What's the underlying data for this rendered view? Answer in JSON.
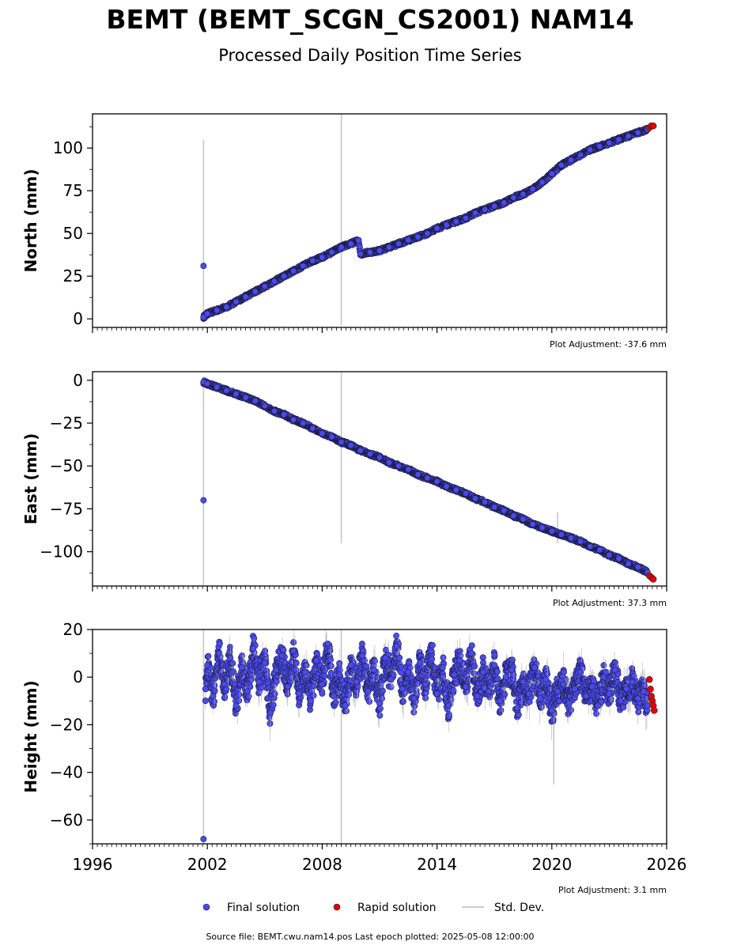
{
  "figure": {
    "title": "BEMT (BEMT_SCGN_CS2001) NAM14",
    "subtitle": "Processed Daily Position Time Series",
    "source_note": "Source file: BEMT.cwu.nam14.pos  Last epoch plotted: 2025-05-08 12:00:00"
  },
  "legend": {
    "items": [
      {
        "label": "Final solution",
        "color": "#4a4aee"
      },
      {
        "label": "Rapid solution",
        "color": "#e60000"
      },
      {
        "label": "Std. Dev.",
        "color": "#cccccc"
      }
    ]
  },
  "colors": {
    "final": "#4a4aee",
    "rapid": "#e60000",
    "stddev": "#c8c8c8",
    "edge": "#1a1a3a"
  },
  "x_axis": {
    "range": [
      1996,
      2026
    ],
    "ticks": [
      1996,
      2002,
      2008,
      2014,
      2020,
      2026
    ],
    "tick_labels": [
      "1996",
      "2002",
      "2008",
      "2014",
      "2020",
      "2026"
    ]
  },
  "chart_data": [
    {
      "type": "scatter",
      "ylabel": "North (mm)",
      "ylim": [
        -5,
        120
      ],
      "yticks": [
        0,
        25,
        50,
        75,
        100
      ],
      "ytick_labels": [
        "0",
        "25",
        "50",
        "75",
        "100"
      ],
      "adjustment_note": "Plot Adjustment: -37.6 mm",
      "final_solution": {
        "x": [
          2001.8,
          2001.8,
          2002.0,
          2002.5,
          2003.0,
          2003.5,
          2004.0,
          2004.5,
          2005.0,
          2005.5,
          2006.0,
          2006.5,
          2007.0,
          2007.5,
          2008.0,
          2008.5,
          2009.0,
          2009.5,
          2009.9,
          2010.0,
          2010.5,
          2011.0,
          2011.5,
          2012.0,
          2012.5,
          2013.0,
          2013.5,
          2014.0,
          2014.5,
          2015.0,
          2015.5,
          2016.0,
          2016.5,
          2017.0,
          2017.5,
          2018.0,
          2018.5,
          2019.0,
          2019.5,
          2020.0,
          2020.5,
          2021.0,
          2021.5,
          2022.0,
          2022.5,
          2023.0,
          2023.5,
          2024.0,
          2024.5,
          2025.0
        ],
        "y": [
          31,
          1,
          3,
          5,
          7,
          10,
          13,
          16,
          19,
          22,
          25,
          28,
          31,
          34,
          36,
          39,
          42,
          44,
          46,
          38,
          39,
          40,
          42,
          44,
          46,
          48,
          50,
          53,
          55,
          57,
          59,
          62,
          64,
          66,
          68,
          71,
          73,
          76,
          80,
          85,
          90,
          93,
          96,
          99,
          101,
          103,
          105,
          107,
          109,
          111
        ]
      },
      "rapid_solution": {
        "x": [
          2025.1,
          2025.2,
          2025.3
        ],
        "y": [
          112,
          113,
          113
        ]
      },
      "std_dev_spikes": [
        {
          "x": 2001.8,
          "y": [
            -2,
            105
          ]
        },
        {
          "x": 2009.0,
          "y": [
            -4,
            120
          ]
        }
      ]
    },
    {
      "type": "scatter",
      "ylabel": "East (mm)",
      "ylim": [
        -120,
        5
      ],
      "yticks": [
        0,
        -25,
        -50,
        -75,
        -100
      ],
      "ytick_labels": [
        "0",
        "−25",
        "−50",
        "−75",
        "−100"
      ],
      "adjustment_note": "Plot Adjustment: 37.3 mm",
      "final_solution": {
        "x": [
          2001.8,
          2001.8,
          2002.0,
          2002.5,
          2003.0,
          2003.5,
          2004.0,
          2004.5,
          2005.0,
          2005.5,
          2006.0,
          2006.5,
          2007.0,
          2007.5,
          2008.0,
          2008.5,
          2009.0,
          2009.5,
          2010.0,
          2010.5,
          2011.0,
          2011.5,
          2012.0,
          2012.5,
          2013.0,
          2013.5,
          2014.0,
          2014.5,
          2015.0,
          2015.5,
          2016.0,
          2016.5,
          2017.0,
          2017.5,
          2018.0,
          2018.5,
          2019.0,
          2019.5,
          2020.0,
          2020.5,
          2021.0,
          2021.5,
          2022.0,
          2022.5,
          2023.0,
          2023.5,
          2024.0,
          2024.5,
          2025.0
        ],
        "y": [
          -70,
          -1,
          -2,
          -4,
          -6,
          -8,
          -10,
          -12,
          -15,
          -18,
          -20,
          -23,
          -25,
          -28,
          -31,
          -33,
          -36,
          -38,
          -41,
          -43,
          -45,
          -48,
          -50,
          -52,
          -55,
          -57,
          -59,
          -62,
          -64,
          -66,
          -69,
          -71,
          -74,
          -76,
          -79,
          -81,
          -84,
          -86,
          -88,
          -90,
          -92,
          -94,
          -97,
          -99,
          -102,
          -104,
          -107,
          -109,
          -112
        ]
      },
      "rapid_solution": {
        "x": [
          2025.1,
          2025.2,
          2025.3
        ],
        "y": [
          -114,
          -115,
          -116
        ]
      },
      "std_dev_spikes": [
        {
          "x": 2001.8,
          "y": [
            -120,
            2
          ]
        },
        {
          "x": 2009.0,
          "y": [
            -95,
            5
          ]
        },
        {
          "x": 2020.3,
          "y": [
            -95,
            -77
          ]
        }
      ]
    },
    {
      "type": "scatter",
      "ylabel": "Height (mm)",
      "ylim": [
        -70,
        20
      ],
      "yticks": [
        20,
        0,
        -20,
        -40,
        -60
      ],
      "ytick_labels": [
        "20",
        "0",
        "−20",
        "−40",
        "−60"
      ],
      "adjustment_note": "Plot Adjustment: 3.1 mm",
      "final_solution": {
        "x": [
          2001.8,
          2001.9,
          2002.0,
          2002.3,
          2002.6,
          2002.9,
          2003.2,
          2003.5,
          2003.8,
          2004.1,
          2004.4,
          2004.7,
          2005.0,
          2005.3,
          2005.6,
          2005.9,
          2006.2,
          2006.5,
          2006.8,
          2007.1,
          2007.4,
          2007.7,
          2008.0,
          2008.3,
          2008.6,
          2008.9,
          2009.2,
          2009.5,
          2009.8,
          2010.1,
          2010.4,
          2010.7,
          2011.0,
          2011.3,
          2011.6,
          2011.9,
          2012.2,
          2012.5,
          2012.8,
          2013.1,
          2013.4,
          2013.7,
          2014.0,
          2014.3,
          2014.6,
          2014.9,
          2015.2,
          2015.5,
          2015.8,
          2016.1,
          2016.4,
          2016.7,
          2017.0,
          2017.3,
          2017.6,
          2017.9,
          2018.2,
          2018.5,
          2018.8,
          2019.1,
          2019.4,
          2019.7,
          2020.0,
          2020.3,
          2020.6,
          2020.9,
          2021.2,
          2021.5,
          2021.8,
          2022.1,
          2022.4,
          2022.7,
          2023.0,
          2023.3,
          2023.6,
          2023.9,
          2024.2,
          2024.5,
          2024.8,
          2025.0
        ],
        "y": [
          -68,
          -5,
          5,
          -8,
          10,
          -3,
          8,
          -12,
          4,
          -6,
          12,
          -2,
          6,
          -15,
          3,
          9,
          -4,
          11,
          -7,
          2,
          -10,
          7,
          -3,
          14,
          -8,
          1,
          -12,
          5,
          -2,
          9,
          -6,
          3,
          -11,
          8,
          -1,
          13,
          -5,
          2,
          -9,
          6,
          -3,
          11,
          -7,
          4,
          -12,
          1,
          7,
          -4,
          10,
          -8,
          2,
          -6,
          5,
          -10,
          0,
          3,
          -13,
          -2,
          -7,
          4,
          -9,
          -1,
          -14,
          -6,
          -3,
          -11,
          -5,
          2,
          -8,
          -4,
          -12,
          0,
          -7,
          3,
          -10,
          -5,
          -2,
          -9,
          -6,
          -12
        ],
        "spread": 9
      },
      "rapid_solution": {
        "x": [
          2025.1,
          2025.15,
          2025.2,
          2025.25,
          2025.3,
          2025.35
        ],
        "y": [
          -1,
          -5,
          -8,
          -10,
          -12,
          -14
        ]
      },
      "std_dev_spikes": [
        {
          "x": 2001.8,
          "y": [
            -70,
            20
          ]
        },
        {
          "x": 2009.0,
          "y": [
            -70,
            20
          ]
        },
        {
          "x": 2020.1,
          "y": [
            -45,
            -20
          ]
        }
      ]
    }
  ]
}
